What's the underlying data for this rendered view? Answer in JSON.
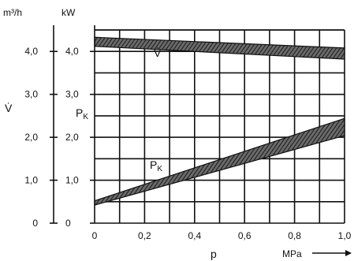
{
  "chart_data": {
    "type": "area",
    "x_axis": {
      "label": "p",
      "unit": "MPa",
      "range": [
        0,
        1.0
      ],
      "ticks": [
        0,
        0.2,
        0.4,
        0.6,
        0.8,
        1.0
      ],
      "tick_labels": [
        "0",
        "0,2",
        "0,4",
        "0,6",
        "0,8",
        "1,0"
      ]
    },
    "y_axes": [
      {
        "label": "V̇",
        "unit": "m³/h",
        "range": [
          0,
          4.5
        ],
        "ticks": [
          0,
          1,
          2,
          3,
          4
        ],
        "tick_labels": [
          "0",
          "1,0",
          "2,0",
          "3,0",
          "4,0"
        ]
      },
      {
        "label": "P_K",
        "unit": "kW",
        "range": [
          0,
          4.5
        ],
        "ticks": [
          0,
          1,
          2,
          3,
          4
        ],
        "tick_labels": [
          "0",
          "1,0",
          "2,0",
          "3,0",
          "4,0"
        ]
      }
    ],
    "grid": true,
    "series": [
      {
        "name": "V̇",
        "band": true,
        "x": [
          0,
          1.0
        ],
        "y_lower": [
          4.12,
          3.82
        ],
        "y_upper": [
          4.33,
          4.08
        ]
      },
      {
        "name": "P_K",
        "band": true,
        "x": [
          0,
          1.0
        ],
        "y_lower": [
          0.42,
          2.04
        ],
        "y_upper": [
          0.52,
          2.44
        ]
      }
    ],
    "series_labels": {
      "volume_flow": "V̇",
      "power": "P",
      "power_subscript": "K"
    }
  }
}
